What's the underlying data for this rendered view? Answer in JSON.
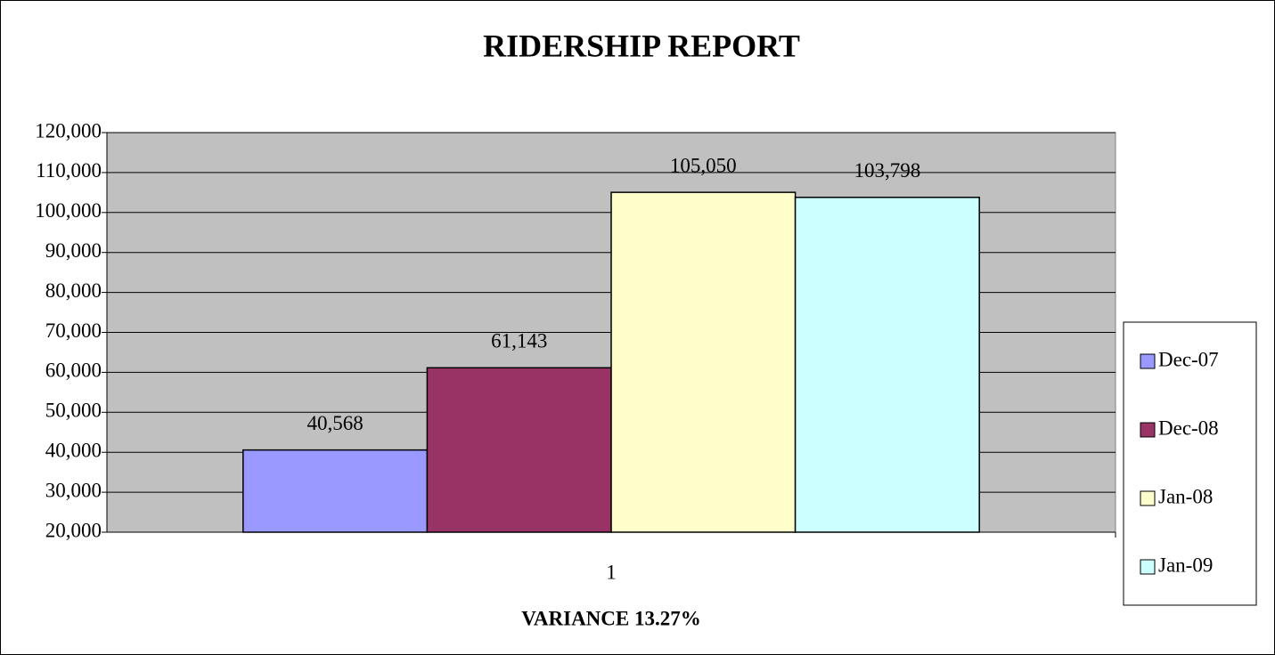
{
  "chart_data": {
    "type": "bar",
    "title": "RIDERSHIP REPORT",
    "x_label": "VARIANCE 13.27%",
    "categories": [
      "1"
    ],
    "series": [
      {
        "name": "Dec-07",
        "color": "#9999ff",
        "values": [
          40568
        ],
        "value_labels": [
          "40,568"
        ]
      },
      {
        "name": "Dec-08",
        "color": "#993366",
        "values": [
          61143
        ],
        "value_labels": [
          "61,143"
        ]
      },
      {
        "name": "Jan-08",
        "color": "#ffffcc",
        "values": [
          105050
        ],
        "value_labels": [
          "105,050"
        ]
      },
      {
        "name": "Jan-09",
        "color": "#ccffff",
        "values": [
          103798
        ],
        "value_labels": [
          "103,798"
        ]
      }
    ],
    "ylim": [
      20000,
      120000
    ],
    "yticks": [
      {
        "value": 20000,
        "label": "20,000"
      },
      {
        "value": 30000,
        "label": "30,000"
      },
      {
        "value": 40000,
        "label": "40,000"
      },
      {
        "value": 50000,
        "label": "50,000"
      },
      {
        "value": 60000,
        "label": "60,000"
      },
      {
        "value": 70000,
        "label": "70,000"
      },
      {
        "value": 80000,
        "label": "80,000"
      },
      {
        "value": 90000,
        "label": "90,000"
      },
      {
        "value": 100000,
        "label": "100,000"
      },
      {
        "value": 110000,
        "label": "110,000"
      },
      {
        "value": 120000,
        "label": "120,000"
      }
    ],
    "grid": true,
    "plot_background": "#c0c0c0",
    "legend": "right"
  }
}
